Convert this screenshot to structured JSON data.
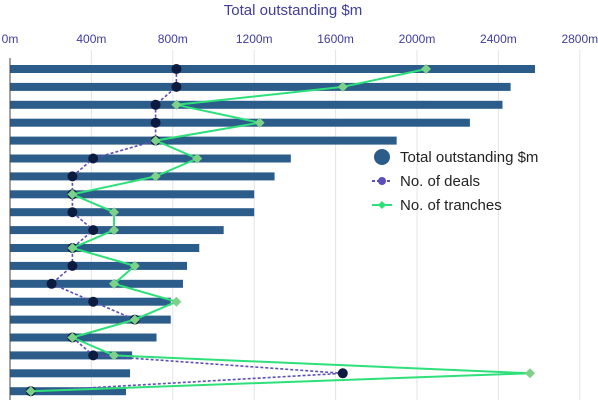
{
  "chart_data": {
    "type": "bar",
    "orientation": "horizontal",
    "x_axis_top_title": "Total outstanding $m",
    "x_ticks": [
      0,
      400,
      800,
      1200,
      1600,
      2000,
      2400,
      2800
    ],
    "x_tick_labels": [
      "0m",
      "400m",
      "800m",
      "1200m",
      "1600m",
      "2000m",
      "2400m",
      "2800m"
    ],
    "xlim": [
      0,
      2900
    ],
    "grid": true,
    "legend_position": "right",
    "series": [
      {
        "name": "Total outstanding $m",
        "type": "bar",
        "color": "#2b5c8a",
        "values": [
          2580,
          2460,
          2420,
          2260,
          1900,
          1380,
          1300,
          1200,
          1200,
          1050,
          930,
          870,
          850,
          790,
          790,
          720,
          600,
          590,
          570
        ]
      },
      {
        "name": "No. of deals",
        "type": "line",
        "style": "dashed",
        "color": "#5b4fb8",
        "marker_color": "#0d1b3e",
        "axis_max": 18,
        "values": [
          8,
          8,
          7,
          7,
          7,
          4,
          3,
          3,
          3,
          4,
          3,
          3,
          2,
          4,
          6,
          3,
          4,
          16,
          1
        ]
      },
      {
        "name": "No. of tranches",
        "type": "line",
        "style": "solid",
        "color": "#2ee07a",
        "marker_color": "#7ed18a",
        "axis_max": 18,
        "values": [
          20,
          16,
          8,
          12,
          7,
          9,
          7,
          3,
          5,
          5,
          3,
          6,
          5,
          8,
          6,
          3,
          5,
          25,
          1
        ]
      }
    ]
  }
}
